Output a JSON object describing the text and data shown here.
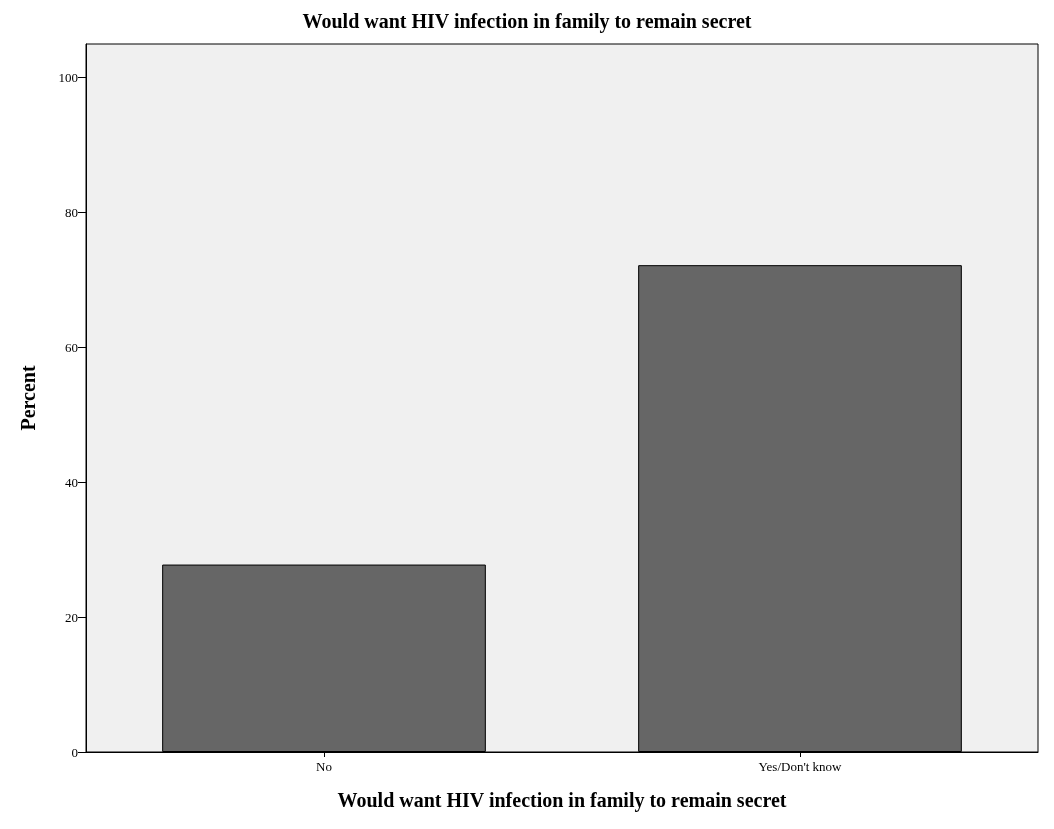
{
  "chart_data": {
    "type": "bar",
    "title": "Would want HIV infection in family to remain secret",
    "xlabel": "Would want HIV infection in family to remain secret",
    "ylabel": "Percent",
    "categories": [
      "No",
      "Yes/Don't know"
    ],
    "values": [
      27.8,
      72.2
    ],
    "color": "#666666",
    "ylim": [
      0,
      105
    ],
    "yticks": [
      0,
      20,
      40,
      60,
      80,
      100
    ],
    "grid": false
  }
}
